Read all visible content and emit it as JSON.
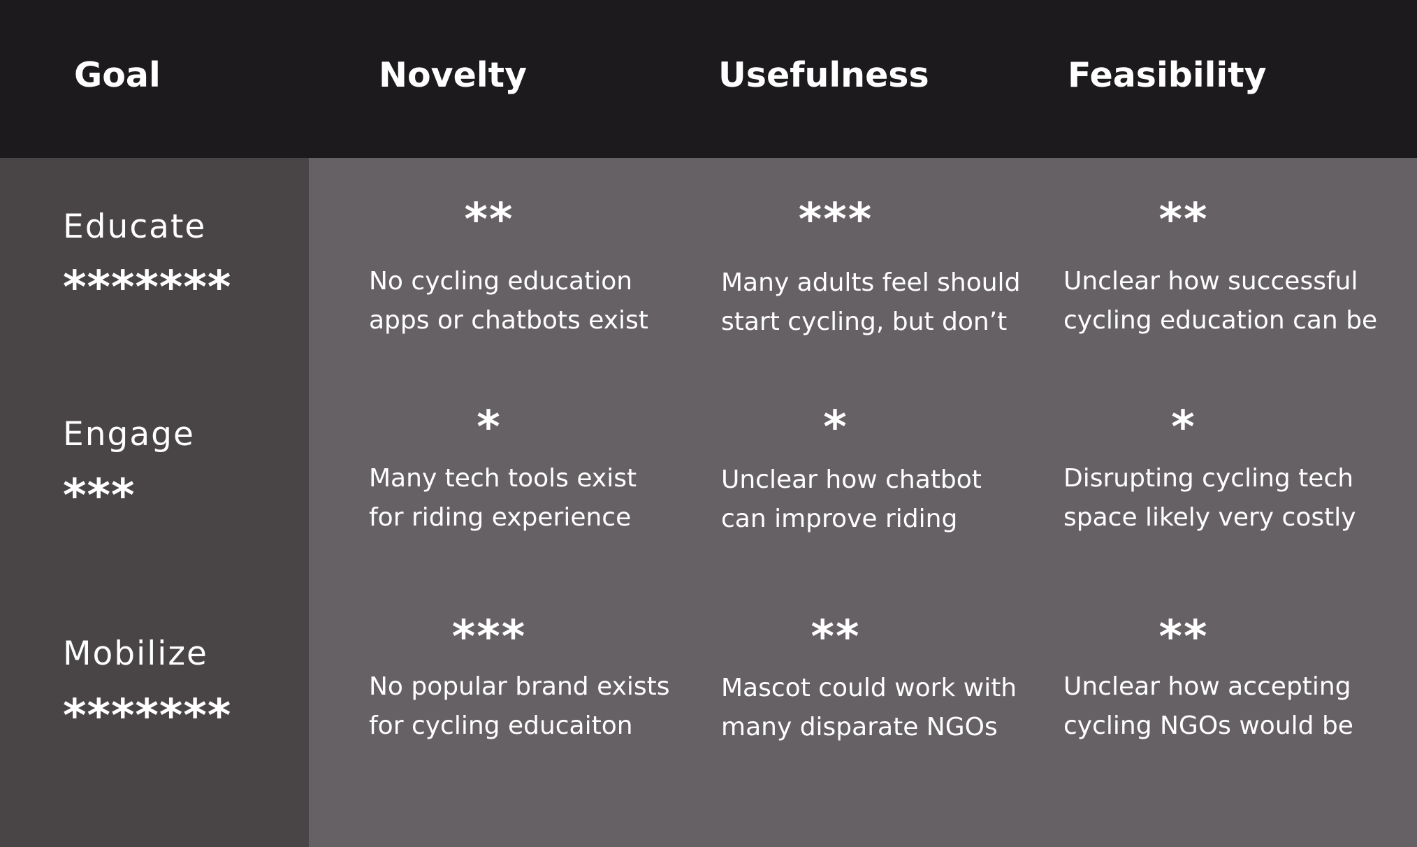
{
  "header": {
    "goal": "Goal",
    "novelty": "Novelty",
    "usefulness": "Usefulness",
    "feasibility": "Feasibility"
  },
  "rows": [
    {
      "goal": "Educate",
      "goal_stars": "*******",
      "novelty": {
        "stars": "**",
        "lines": [
          "No cycling education",
          "apps or chatbots exist"
        ]
      },
      "usefulness": {
        "stars": "***",
        "lines": [
          "Many adults feel should",
          "start cycling, but don’t"
        ]
      },
      "feasibility": {
        "stars": "**",
        "lines": [
          "Unclear how successful",
          "cycling education can be"
        ]
      }
    },
    {
      "goal": "Engage",
      "goal_stars": "***",
      "novelty": {
        "stars": "*",
        "lines": [
          "Many tech tools exist",
          "for riding experience"
        ]
      },
      "usefulness": {
        "stars": "*",
        "lines": [
          "Unclear how chatbot",
          "can improve riding"
        ]
      },
      "feasibility": {
        "stars": "*",
        "lines": [
          "Disrupting cycling tech",
          "space likely very costly"
        ]
      }
    },
    {
      "goal": "Mobilize",
      "goal_stars": "*******",
      "novelty": {
        "stars": "***",
        "lines": [
          "No popular brand exists",
          "for cycling educaiton"
        ]
      },
      "usefulness": {
        "stars": "**",
        "lines": [
          "Mascot could work with",
          "many disparate NGOs"
        ]
      },
      "feasibility": {
        "stars": "**",
        "lines": [
          "Unclear how accepting",
          "cycling NGOs would be"
        ]
      }
    }
  ]
}
